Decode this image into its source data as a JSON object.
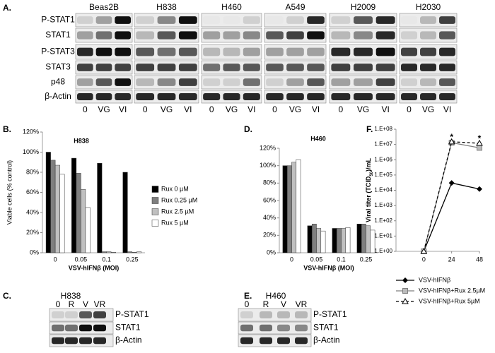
{
  "panel_labels": [
    "A.",
    "B.",
    "C.",
    "D.",
    "E.",
    "F."
  ],
  "blot_a": {
    "cell_lines": [
      "Beas2B",
      "H838",
      "H460",
      "A549",
      "H2009",
      "H2030"
    ],
    "rows": [
      "P-STAT1",
      "STAT1",
      "P-STAT3",
      "STAT3",
      "p48",
      "β-Actin"
    ],
    "lanes": [
      "0",
      "VG",
      "VI"
    ]
  },
  "blot_c": {
    "title": "H838",
    "lanes": [
      "0",
      "R",
      "V",
      "VR"
    ],
    "rows": [
      "P-STAT1",
      "STAT1",
      "β-Actin"
    ]
  },
  "blot_e": {
    "title": "H460",
    "lanes": [
      "0",
      "R",
      "V",
      "VR"
    ],
    "rows": [
      "P-STAT1",
      "STAT1",
      "β-Actin"
    ]
  },
  "chart_data": [
    {
      "type": "bar",
      "title": "H838",
      "ylabel": "Viable cells (% control)",
      "xlabel": "VSV-hIFNβ (MOI)",
      "categories": [
        "0",
        "0.05",
        "0.1",
        "0.25"
      ],
      "series": [
        {
          "name": "Rux 0 µM",
          "color": "#000000",
          "values": [
            100,
            94,
            89,
            80
          ]
        },
        {
          "name": "Rux 0.25 µM",
          "color": "#7f7f7f",
          "values": [
            92,
            79,
            1,
            1
          ]
        },
        {
          "name": "Rux 2.5 µM",
          "color": "#c0c0c0",
          "values": [
            87,
            63,
            1,
            0.5
          ]
        },
        {
          "name": "Rux 5 µM",
          "color": "#ffffff",
          "values": [
            78,
            45,
            0.5,
            1
          ]
        }
      ],
      "ylim": [
        0,
        120
      ],
      "yticks": [
        {
          "value": 0,
          "label": "0%"
        },
        {
          "value": 20,
          "label": "20%"
        },
        {
          "value": 40,
          "label": "40%"
        },
        {
          "value": 60,
          "label": "60%"
        },
        {
          "value": 80,
          "label": "80%"
        },
        {
          "value": 100,
          "label": "100%"
        },
        {
          "value": 120,
          "label": "120%"
        }
      ],
      "legend": "right"
    },
    {
      "type": "bar",
      "title": "H460",
      "xlabel": "VSV-hIFNβ (MOI)",
      "categories": [
        "0",
        "0.05",
        "0.1",
        "0.25"
      ],
      "series": [
        {
          "color": "#000000",
          "values": [
            100,
            31,
            28,
            33
          ]
        },
        {
          "color": "#7f7f7f",
          "values": [
            100,
            33,
            28,
            33
          ]
        },
        {
          "color": "#c0c0c0",
          "values": [
            104,
            28,
            28,
            31
          ]
        },
        {
          "color": "#ffffff",
          "values": [
            107,
            25,
            29,
            26
          ]
        }
      ],
      "ylim": [
        0,
        120
      ],
      "yticks": [
        {
          "value": 0,
          "label": "0%"
        },
        {
          "value": 20,
          "label": "20%"
        },
        {
          "value": 40,
          "label": "40%"
        },
        {
          "value": 60,
          "label": "60%"
        },
        {
          "value": 80,
          "label": "80%"
        },
        {
          "value": 100,
          "label": "100%"
        },
        {
          "value": 120,
          "label": "120%"
        }
      ]
    },
    {
      "type": "line",
      "ylabel": {
        "text": "Viral titer (TCID",
        "subscript": "50",
        "suffix": ")/mL"
      },
      "x": [
        0,
        24,
        48
      ],
      "xlim": [
        -24,
        48
      ],
      "xticks": [
        0,
        24,
        48
      ],
      "log_y": true,
      "ylim": [
        1,
        100000000
      ],
      "yticks": [
        {
          "value": 1,
          "label": "1.E+00"
        },
        {
          "value": 10,
          "label": "1.E+01"
        },
        {
          "value": 100,
          "label": "1.E+02"
        },
        {
          "value": 1000,
          "label": "1.E+03"
        },
        {
          "value": 10000,
          "label": "1.E+04"
        },
        {
          "value": 100000,
          "label": "1.E+05"
        },
        {
          "value": 1000000,
          "label": "1.E+06"
        },
        {
          "value": 10000000,
          "label": "1.E+07"
        },
        {
          "value": 100000000,
          "label": "1.E+08"
        }
      ],
      "series": [
        {
          "name": "VSV-hIFNβ",
          "color": "#000000",
          "marker": "diamond",
          "dashed": false,
          "values": [
            1,
            30000,
            12000
          ]
        },
        {
          "name": "VSV-hIFNβ+Rux 2.5µM",
          "color": "#7f7f7f",
          "marker": "square",
          "dashed": false,
          "values": [
            1,
            13000000,
            6000000
          ]
        },
        {
          "name": "VSV-hIFNβ+Rux 5µM",
          "color": "#000000",
          "marker": "triangle",
          "dashed": true,
          "values": [
            1,
            15000000,
            12000000
          ]
        }
      ],
      "annotations": [
        {
          "text": "*",
          "x": 24
        },
        {
          "text": "*",
          "x": 48
        }
      ],
      "legend": "bottom"
    }
  ]
}
